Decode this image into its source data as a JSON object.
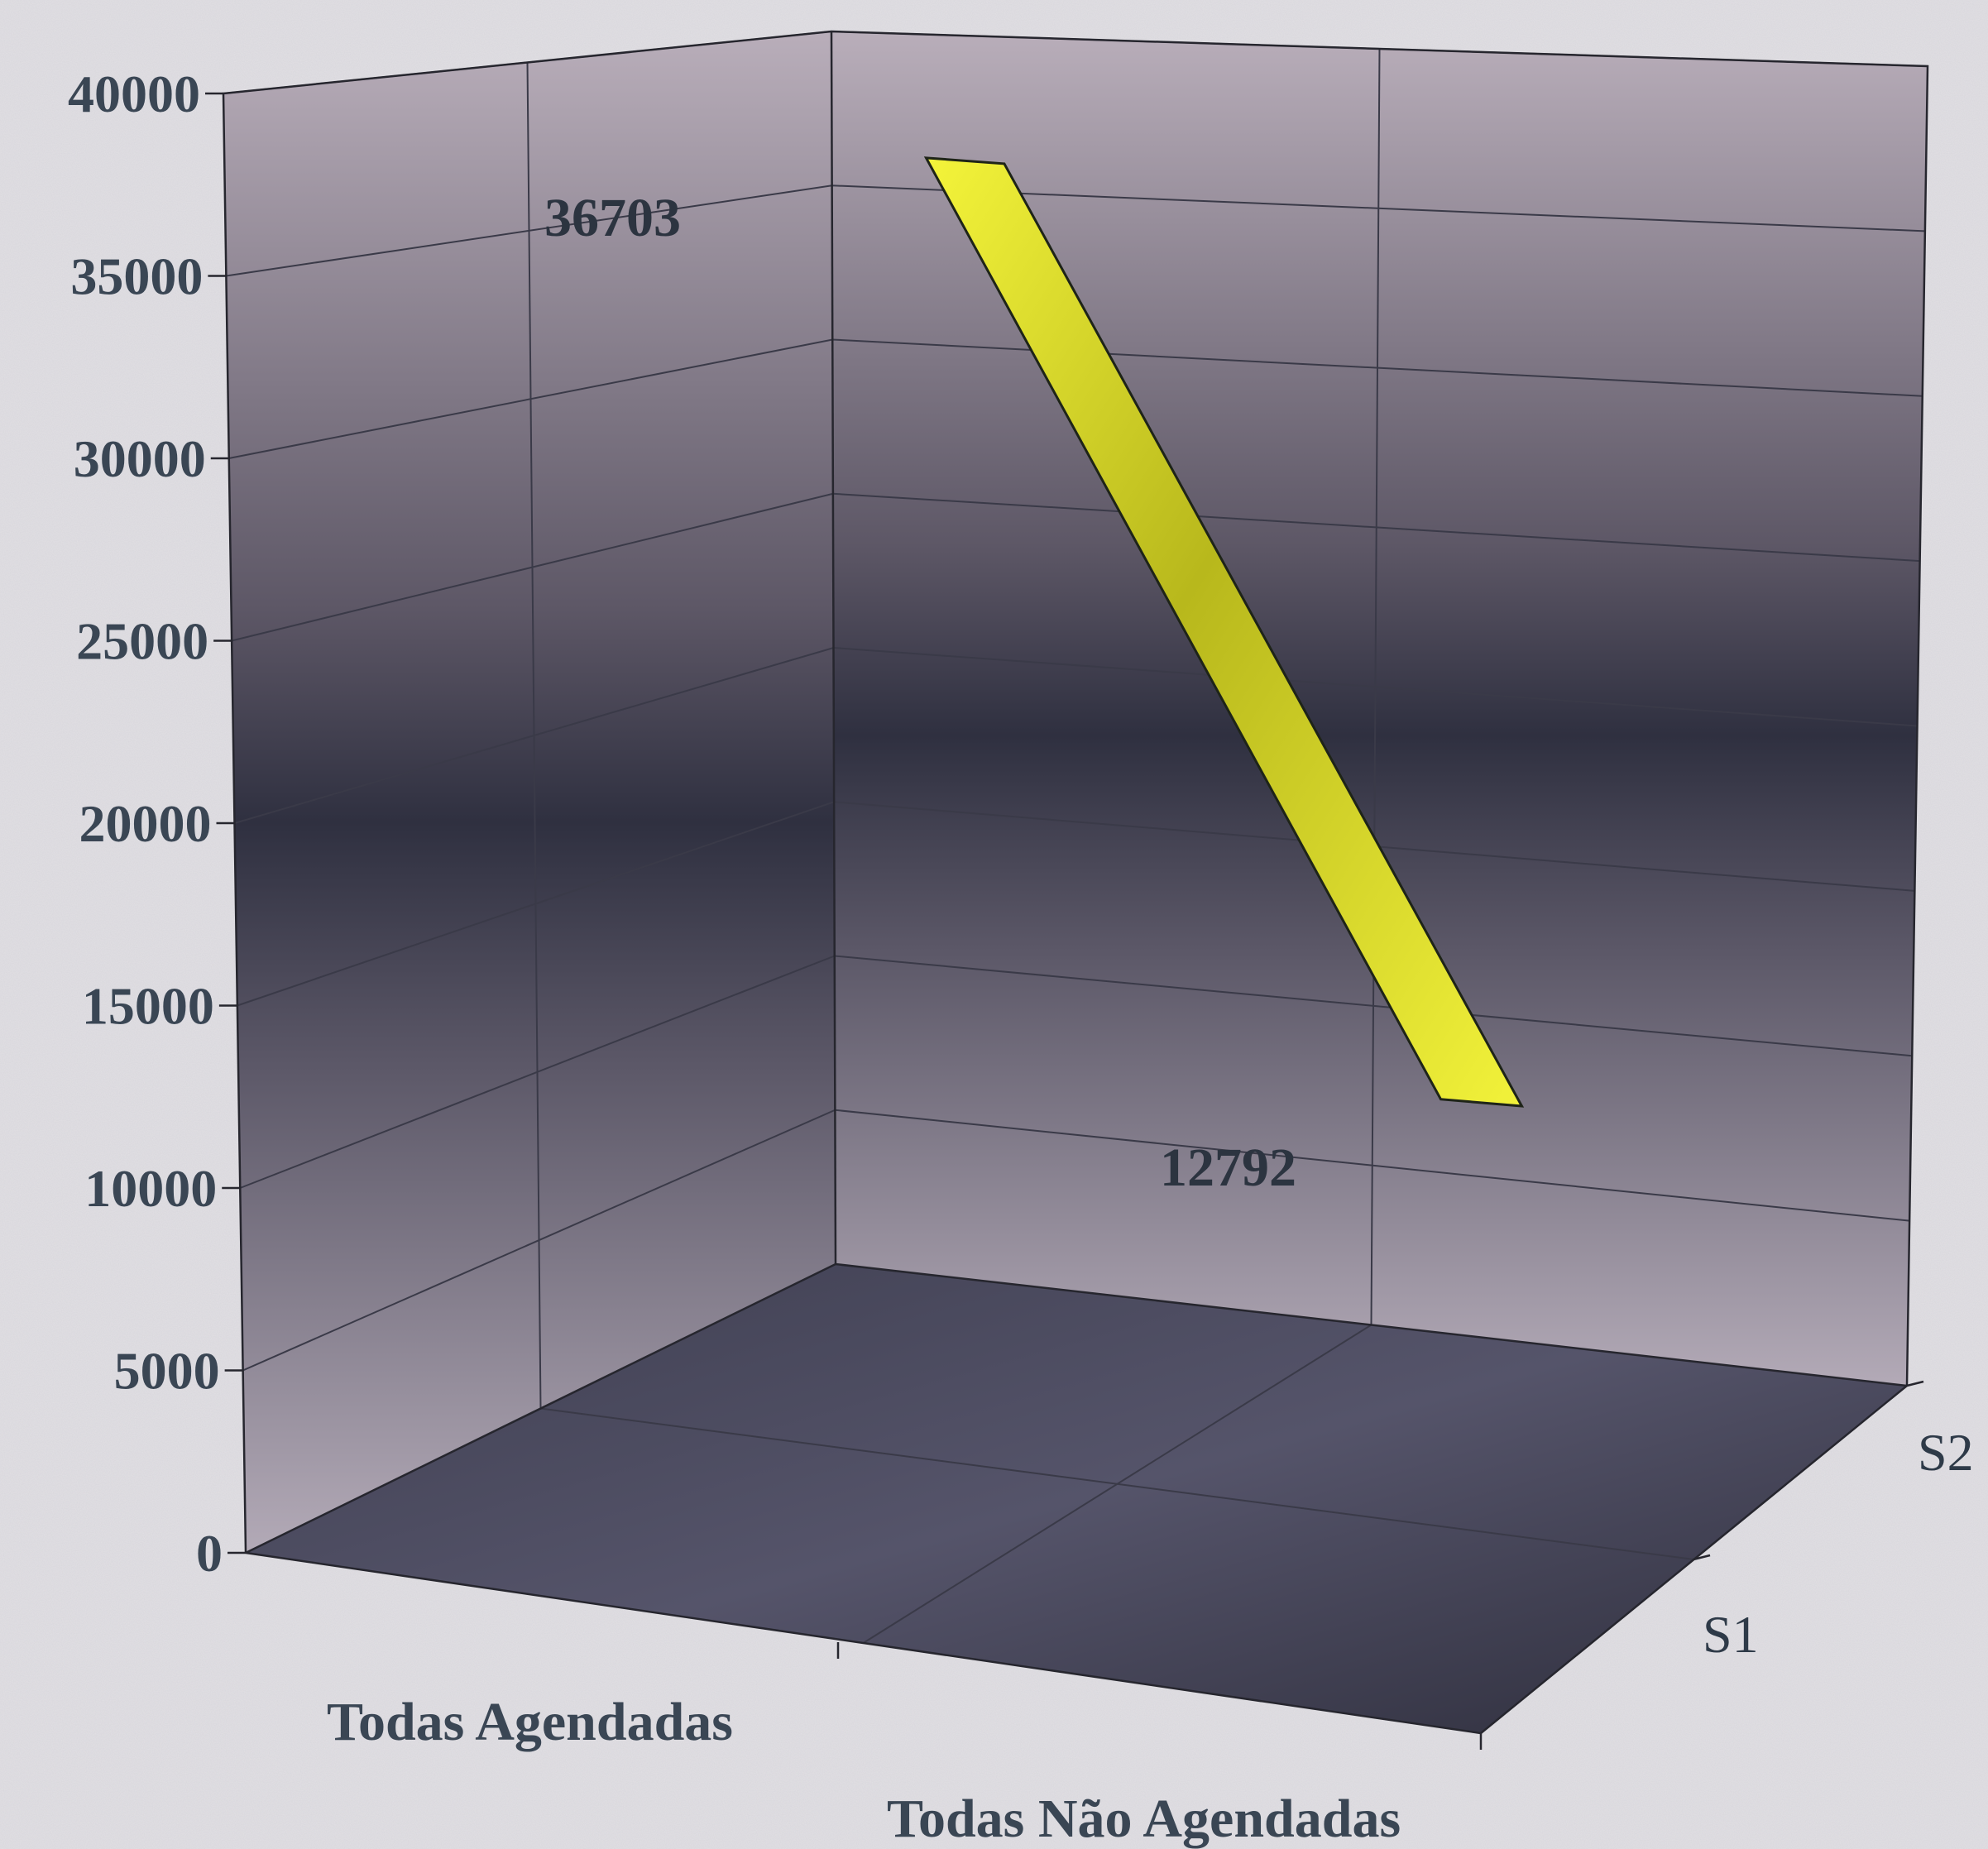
{
  "chart_data": {
    "type": "line",
    "style": "3d",
    "categories": [
      "Todas Agendadas",
      "Todas Não Agendadas"
    ],
    "depth_categories": [
      "S1",
      "S2"
    ],
    "series": [
      {
        "depth": "S1",
        "values": [
          36703,
          12792
        ],
        "color": "#f2f22a"
      }
    ],
    "data_labels": [
      "36703",
      "12792"
    ],
    "y_ticks": [
      "0",
      "5000",
      "10000",
      "15000",
      "20000",
      "25000",
      "30000",
      "35000",
      "40000"
    ],
    "ylim": [
      0,
      40000
    ],
    "grid": true,
    "legend": "none"
  }
}
